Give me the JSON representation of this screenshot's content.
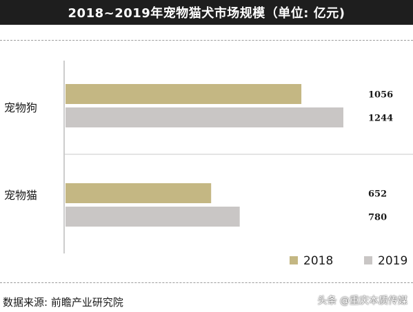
{
  "title": "2018~2019年宠物猫犬市场规模（单位: 亿元)",
  "source": "数据来源: 前瞻产业研究院",
  "watermark": "头条 @重庆本质传媒",
  "colors": {
    "2018": "#c4b783",
    "2019": "#c9c6c5",
    "title_bg": "#1e1e1e"
  },
  "chart_data": {
    "type": "bar",
    "orientation": "horizontal",
    "title": "2018~2019年宠物猫犬市场规模（单位: 亿元)",
    "categories": [
      "宠物狗",
      "宠物猫"
    ],
    "series": [
      {
        "name": "2018",
        "values": [
          1056,
          652
        ]
      },
      {
        "name": "2019",
        "values": [
          1244,
          780
        ]
      }
    ],
    "xlim": [
      0,
      1244
    ],
    "legend": "bottom-right",
    "grid": false
  }
}
